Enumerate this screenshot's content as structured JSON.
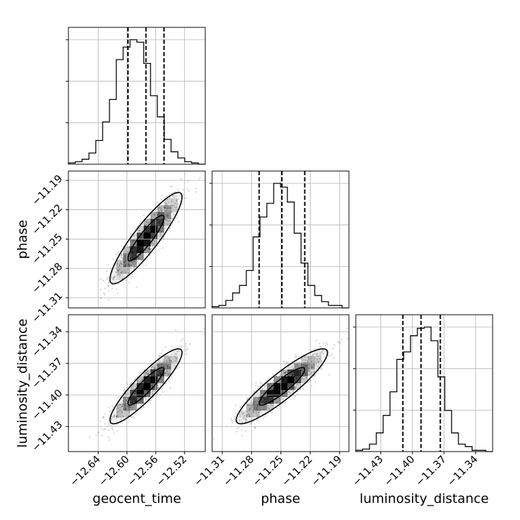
{
  "chart_data": {
    "type": "corner",
    "parameters": [
      "geocent_time",
      "phase",
      "luminosity_distance"
    ],
    "ranges": {
      "geocent_time": [
        -12.6813,
        -12.4913
      ],
      "phase": [
        -11.3204,
        -11.1804
      ],
      "luminosity_distance": [
        -11.4538,
        -11.3238
      ]
    },
    "ticks": {
      "geocent_time": [
        -12.64,
        -12.6,
        -12.56,
        -12.52
      ],
      "phase": [
        -11.31,
        -11.28,
        -11.25,
        -11.22,
        -11.19
      ],
      "luminosity_distance": [
        -11.43,
        -11.4,
        -11.37,
        -11.34
      ]
    },
    "tick_labels": {
      "geocent_time": [
        "−12.64",
        "−12.60",
        "−12.56",
        "−12.52"
      ],
      "phase": [
        "−11.31",
        "−11.28",
        "−11.25",
        "−11.22",
        "−11.19"
      ],
      "luminosity_distance": [
        "−11.43",
        "−11.40",
        "−11.37",
        "−11.34"
      ]
    },
    "quantiles": {
      "geocent_time": [
        -12.5986,
        -12.5736,
        -12.5486
      ],
      "phase": [
        -11.2723,
        -11.249,
        -11.2256
      ],
      "luminosity_distance": [
        -11.4091,
        -11.3918,
        -11.3735
      ]
    },
    "histograms": {
      "bins": 20,
      "geocent_time": [
        0.01,
        0.02,
        0.04,
        0.09,
        0.19,
        0.34,
        0.52,
        0.84,
        0.94,
        1.0,
        0.98,
        0.81,
        0.55,
        0.38,
        0.2,
        0.1,
        0.05,
        0.02,
        0.01,
        0.0
      ],
      "phase": [
        0.01,
        0.02,
        0.06,
        0.12,
        0.18,
        0.3,
        0.57,
        0.73,
        0.84,
        1.0,
        0.97,
        0.85,
        0.6,
        0.36,
        0.18,
        0.1,
        0.05,
        0.02,
        0.02,
        0.0
      ],
      "luminosity_distance": [
        0.01,
        0.02,
        0.06,
        0.15,
        0.29,
        0.48,
        0.74,
        0.8,
        0.93,
        0.99,
        1.0,
        0.89,
        0.6,
        0.33,
        0.15,
        0.06,
        0.04,
        0.01,
        0.01,
        0.0
      ]
    },
    "contour_levels": [
      0.393,
      0.865
    ],
    "grid": true,
    "xlabel": [
      "geocent_time",
      "phase",
      "luminosity_distance"
    ],
    "ylabel": [
      "phase",
      "luminosity_distance"
    ]
  }
}
